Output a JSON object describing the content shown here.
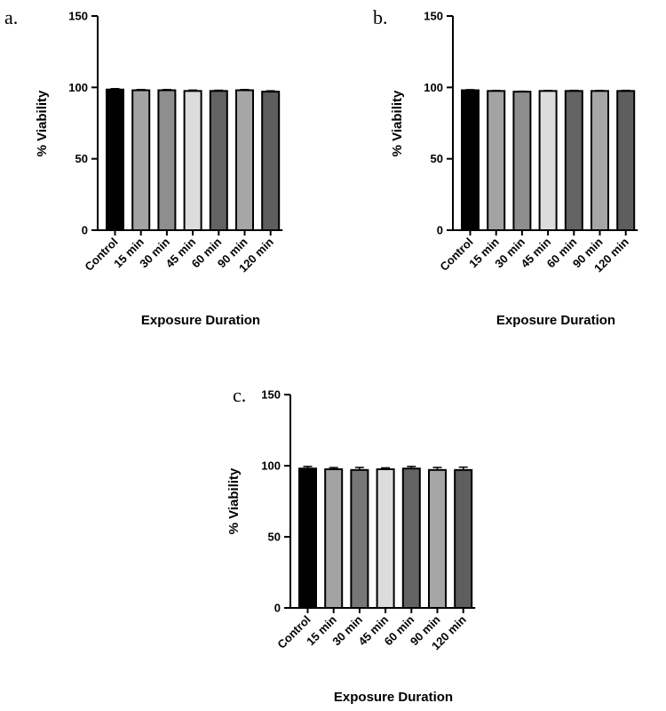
{
  "chart_data": [
    {
      "type": "bar",
      "panel_label": "a.",
      "xlabel": "Exposure Duration",
      "ylabel": "% Viability",
      "ylim": [
        0,
        150
      ],
      "yticks": [
        "0",
        "50",
        "100",
        "150"
      ],
      "categories": [
        "Control",
        "15 min",
        "30 min",
        "45 min",
        "60 min",
        "90 min",
        "120 min"
      ],
      "values": [
        98.5,
        98.0,
        98.0,
        97.5,
        97.5,
        98.0,
        97.0
      ],
      "errors": [
        0.6,
        0.5,
        0.5,
        0.6,
        0.5,
        0.5,
        0.6
      ],
      "bar_colors": [
        "#000000",
        "#a3a3a3",
        "#8e8e8e",
        "#dcdcdc",
        "#636363",
        "#a6a6a6",
        "#5e5e5e"
      ],
      "grid": false,
      "legend": "none"
    },
    {
      "type": "bar",
      "panel_label": "b.",
      "xlabel": "Exposure Duration",
      "ylabel": "% Viability",
      "ylim": [
        0,
        150
      ],
      "yticks": [
        "0",
        "50",
        "100",
        "150"
      ],
      "categories": [
        "Control",
        "15 min",
        "30 min",
        "45 min",
        "60 min",
        "90 min",
        "120 min"
      ],
      "values": [
        98.0,
        97.5,
        97.0,
        97.5,
        97.5,
        97.5,
        97.5
      ],
      "errors": [
        0.4,
        0.3,
        0.3,
        0.3,
        0.4,
        0.3,
        0.4
      ],
      "bar_colors": [
        "#000000",
        "#a3a3a3",
        "#8e8e8e",
        "#dcdcdc",
        "#636363",
        "#a6a6a6",
        "#5e5e5e"
      ],
      "grid": false,
      "legend": "none"
    },
    {
      "type": "bar",
      "panel_label": "c.",
      "xlabel": "Exposure Duration",
      "ylabel": "% Viability",
      "ylim": [
        0,
        150
      ],
      "yticks": [
        "0",
        "50",
        "100",
        "150"
      ],
      "categories": [
        "Control",
        "15 min",
        "30 min",
        "45 min",
        "60 min",
        "90 min",
        "120 min"
      ],
      "values": [
        98.0,
        97.5,
        97.0,
        97.5,
        98.0,
        97.0,
        97.0
      ],
      "errors": [
        1.5,
        1.2,
        1.8,
        1.0,
        1.5,
        1.8,
        2.0
      ],
      "bar_colors": [
        "#000000",
        "#a3a3a3",
        "#777777",
        "#dcdcdc",
        "#636363",
        "#a6a6a6",
        "#5e5e5e"
      ],
      "grid": false,
      "legend": "none"
    }
  ]
}
